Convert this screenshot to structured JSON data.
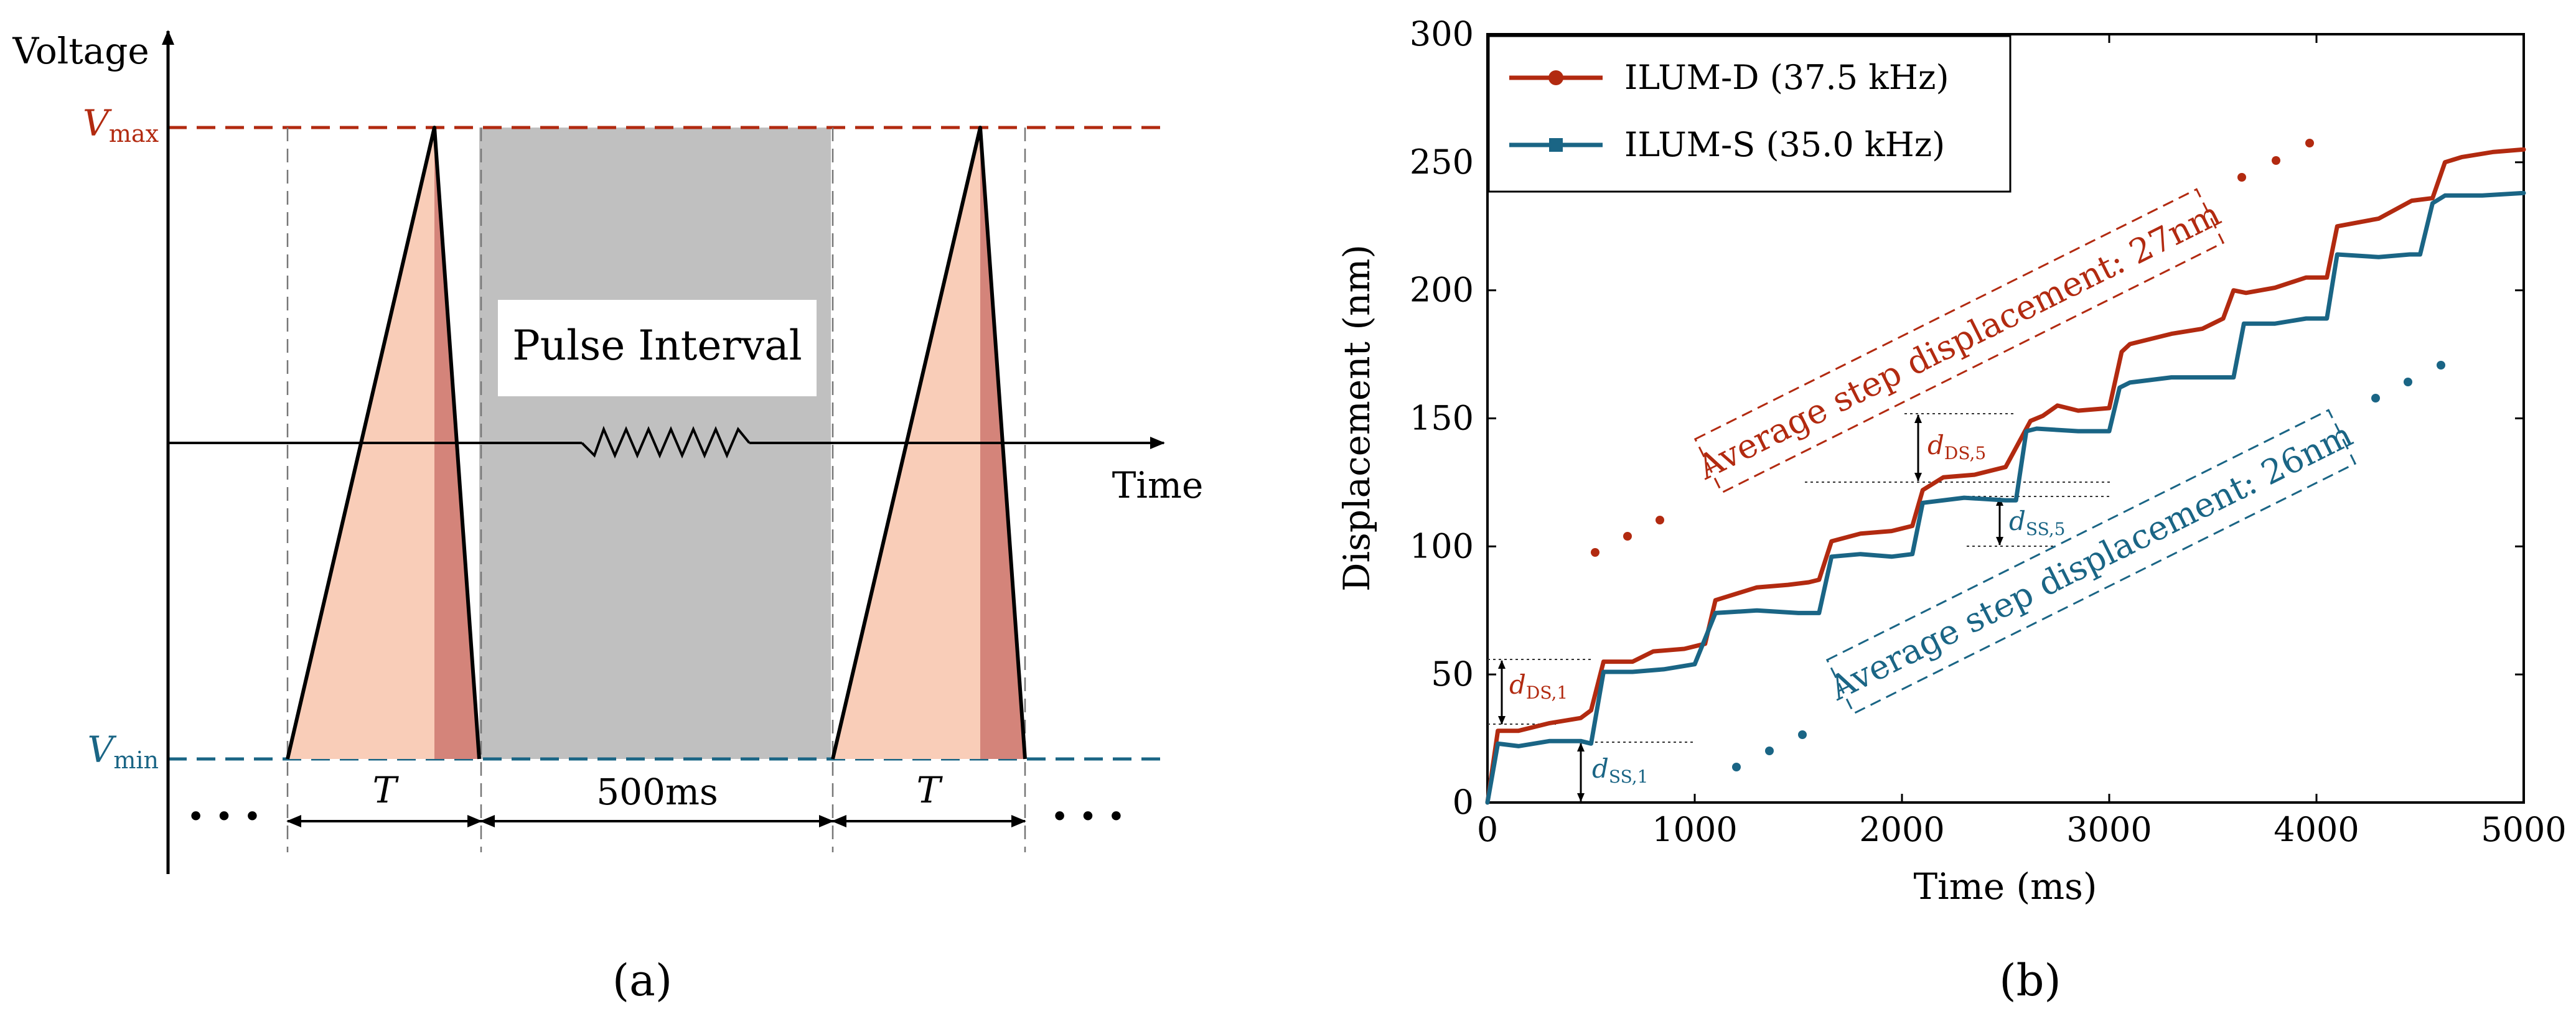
{
  "colors": {
    "red": "#b22a10",
    "blue": "#1a6585",
    "ramp_fill": "#f9cdb8",
    "fall_fill": "#d4847a",
    "interval_fill": "#c0c0c0",
    "axis": "#000000"
  },
  "panel_a": {
    "caption": "(a)",
    "y_axis_label": "Voltage",
    "x_axis_label": "Time",
    "vmax": {
      "main": "V",
      "sub": "max"
    },
    "vmin": {
      "main": "V",
      "sub": "min"
    },
    "interval_label": "Pulse Interval",
    "period_label_left": "T",
    "interval_duration": "500ms",
    "period_label_right": "T",
    "ellipsis_left": "• • •",
    "ellipsis_right": "• • •",
    "resistor_icon": "resistor-symbol"
  },
  "panel_b": {
    "caption": "(b)",
    "annotation_ds": "Average step displacement:  27nm",
    "annotation_ss": "Average step displacement:  26nm",
    "d_ds1": {
      "main": "d",
      "sub": "DS,1"
    },
    "d_ss1": {
      "main": "d",
      "sub": "SS,1"
    },
    "d_ds5": {
      "main": "d",
      "sub": "DS,5"
    },
    "d_ss5": {
      "main": "d",
      "sub": "SS,5"
    }
  },
  "chart_data": {
    "type": "line",
    "title": "",
    "xlabel": "Time (ms)",
    "ylabel": "Displacement (nm)",
    "xlim": [
      0,
      5000
    ],
    "ylim": [
      0,
      300
    ],
    "xticks": [
      "0",
      "1000",
      "2000",
      "3000",
      "4000",
      "5000"
    ],
    "yticks": [
      "0",
      "50",
      "100",
      "150",
      "200",
      "250",
      "300"
    ],
    "grid": false,
    "legend_position": "top-left",
    "series": [
      {
        "name": "ILUM-D (37.5 kHz)",
        "color": "#b22a10",
        "marker": "circle",
        "x": [
          0,
          50,
          150,
          300,
          450,
          500,
          560,
          700,
          800,
          950,
          1050,
          1100,
          1300,
          1450,
          1550,
          1600,
          1660,
          1800,
          1950,
          2050,
          2100,
          2200,
          2350,
          2500,
          2560,
          2620,
          2680,
          2750,
          2850,
          3000,
          3060,
          3100,
          3300,
          3450,
          3550,
          3600,
          3660,
          3800,
          3950,
          4050,
          4100,
          4300,
          4460,
          4560,
          4620,
          4700,
          4850,
          5000
        ],
        "y": [
          0,
          28,
          28,
          31,
          33,
          36,
          55,
          55,
          59,
          60,
          62,
          79,
          84,
          85,
          86,
          87,
          102,
          105,
          106,
          108,
          122,
          127,
          128,
          131,
          140,
          149,
          151,
          155,
          153,
          154,
          176,
          179,
          183,
          185,
          189,
          200,
          199,
          201,
          205,
          205,
          225,
          228,
          235,
          236,
          250,
          252,
          254,
          255
        ]
      },
      {
        "name": "ILUM-S (35.0 kHz)",
        "color": "#1a6585",
        "marker": "square",
        "x": [
          0,
          50,
          150,
          300,
          450,
          500,
          560,
          700,
          850,
          1000,
          1100,
          1300,
          1500,
          1600,
          1660,
          1800,
          1950,
          2050,
          2100,
          2300,
          2500,
          2550,
          2600,
          2650,
          2850,
          3000,
          3050,
          3100,
          3300,
          3500,
          3600,
          3650,
          3800,
          3950,
          4050,
          4100,
          4300,
          4450,
          4500,
          4560,
          4620,
          4800,
          5000
        ],
        "y": [
          0,
          23,
          22,
          24,
          24,
          23,
          51,
          51,
          52,
          54,
          74,
          75,
          74,
          74,
          96,
          97,
          96,
          97,
          117,
          119,
          118,
          118,
          145,
          146,
          145,
          145,
          162,
          164,
          166,
          166,
          166,
          187,
          187,
          189,
          189,
          214,
          213,
          214,
          214,
          234,
          237,
          237,
          238
        ]
      }
    ]
  }
}
